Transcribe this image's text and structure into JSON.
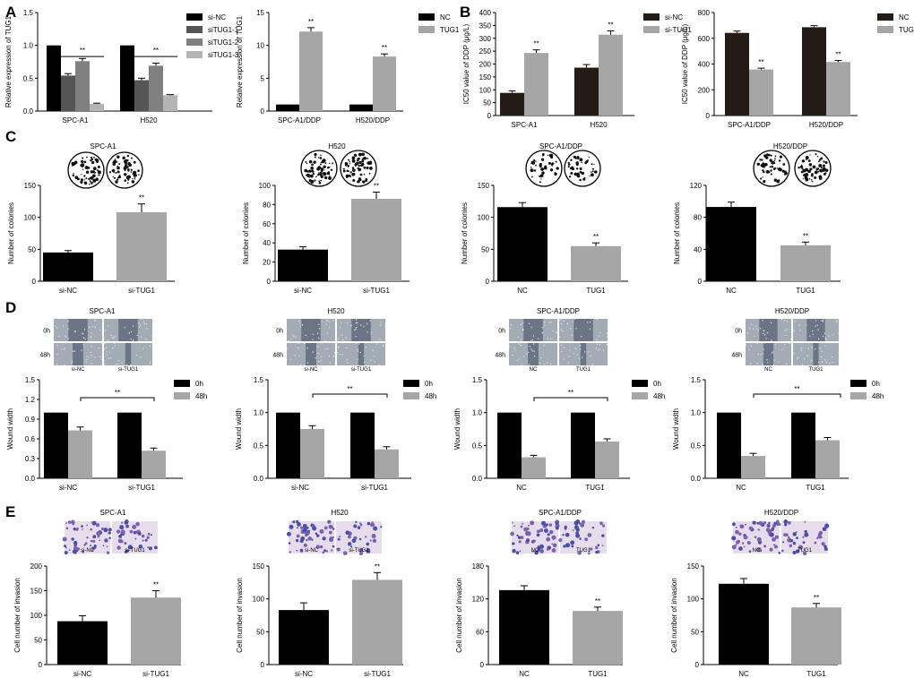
{
  "panel_letters": [
    "A",
    "B",
    "C",
    "D",
    "E"
  ],
  "images": [
    {
      "id": "c1",
      "label": "SPC-A1"
    },
    {
      "id": "c2",
      "label": "H520"
    },
    {
      "id": "c3",
      "label": "SPC-A1/DDP"
    },
    {
      "id": "c4",
      "label": "H520/DDP"
    },
    {
      "id": "d1",
      "label": "SPC-A1",
      "row_labels": [
        "0h",
        "48h"
      ],
      "col_labels": [
        "si-NC",
        "si-TUG1"
      ]
    },
    {
      "id": "d2",
      "label": "H520",
      "row_labels": [
        "0h",
        "48h"
      ],
      "col_labels": [
        "si-NC",
        "si-TUG1"
      ]
    },
    {
      "id": "d3",
      "label": "SPC-A1/DDP",
      "row_labels": [
        "0h",
        "48h"
      ],
      "col_labels": [
        "NC",
        "TUG1"
      ]
    },
    {
      "id": "d4",
      "label": "H520/DDP",
      "row_labels": [
        "0h",
        "48h"
      ],
      "col_labels": [
        "NC",
        "TUG1"
      ]
    },
    {
      "id": "e1",
      "label": "SPC-A1",
      "col_labels": [
        "si-NC",
        "si-TUG1"
      ]
    },
    {
      "id": "e2",
      "label": "H520",
      "col_labels": [
        "si-NC",
        "si-TUG1"
      ]
    },
    {
      "id": "e3",
      "label": "SPC-A1/DDP",
      "col_labels": [
        "NC",
        "TUG1"
      ]
    },
    {
      "id": "e4",
      "label": "H520/DDP",
      "col_labels": [
        "NC",
        "TUG1"
      ]
    }
  ],
  "chart_data": [
    {
      "id": "a1",
      "type": "bar",
      "ylabel": "Relative expression of TUG1",
      "ylim": [
        0,
        1.5
      ],
      "yticks": [
        0,
        0.5,
        1.0,
        1.5
      ],
      "categories": [
        "SPC-A1",
        "H520"
      ],
      "series": [
        {
          "name": "si-NC",
          "color": "#000000",
          "values": [
            1.0,
            1.0
          ],
          "err": [
            0,
            0
          ]
        },
        {
          "name": "siTUG1-1",
          "color": "#555555",
          "values": [
            0.54,
            0.47
          ],
          "err": [
            0.03,
            0.03
          ]
        },
        {
          "name": "siTUG1-2",
          "color": "#808080",
          "values": [
            0.76,
            0.69
          ],
          "err": [
            0.04,
            0.04
          ]
        },
        {
          "name": "siTUG1-3",
          "color": "#b4b4b4",
          "values": [
            0.11,
            0.24
          ],
          "err": [
            0.01,
            0.01
          ]
        }
      ],
      "annotations": [
        "**",
        "**"
      ]
    },
    {
      "id": "a2",
      "type": "bar",
      "ylabel": "Relative expression of TUG1",
      "ylim": [
        0,
        15
      ],
      "yticks": [
        0,
        5,
        10,
        15
      ],
      "categories": [
        "SPC-A1/DDP",
        "H520/DDP"
      ],
      "series": [
        {
          "name": "NC",
          "color": "#000000",
          "values": [
            1.0,
            1.0
          ],
          "err": [
            0,
            0
          ]
        },
        {
          "name": "TUG1",
          "color": "#a6a6a6",
          "values": [
            12.1,
            8.3
          ],
          "err": [
            0.6,
            0.4
          ],
          "sig": [
            "**",
            "**"
          ]
        }
      ]
    },
    {
      "id": "b1",
      "type": "bar",
      "ylabel": "IC50 value of DDP (μg/L)",
      "ylim": [
        0,
        400
      ],
      "yticks": [
        0,
        50,
        100,
        150,
        200,
        250,
        300,
        350,
        400
      ],
      "categories": [
        "SPC-A1",
        "H520"
      ],
      "series": [
        {
          "name": "si-NC",
          "color": "#241a16",
          "values": [
            88,
            186
          ],
          "err": [
            8,
            12
          ]
        },
        {
          "name": "si-TUG1",
          "color": "#a6a6a6",
          "values": [
            243,
            314
          ],
          "err": [
            12,
            15
          ],
          "sig": [
            "**",
            "**"
          ]
        }
      ]
    },
    {
      "id": "b2",
      "type": "bar",
      "ylabel": "IC50 value of DDP (μg/L)",
      "ylim": [
        0,
        800
      ],
      "yticks": [
        0,
        200,
        400,
        600,
        800
      ],
      "categories": [
        "SPC-A1/DDP",
        "H520/DDP"
      ],
      "series": [
        {
          "name": "NC",
          "color": "#241a16",
          "values": [
            642,
            686
          ],
          "err": [
            14,
            12
          ]
        },
        {
          "name": "TUG1",
          "color": "#a6a6a6",
          "values": [
            358,
            416
          ],
          "err": [
            10,
            12
          ],
          "sig": [
            "**",
            "**"
          ]
        }
      ]
    },
    {
      "id": "c1",
      "type": "bar",
      "ylabel": "Number of colonies",
      "ylim": [
        0,
        150
      ],
      "yticks": [
        0,
        50,
        100,
        150
      ],
      "categories": [
        "si-NC",
        "si-TUG1"
      ],
      "colors": [
        "#000000",
        "#a6a6a6"
      ],
      "values": [
        45,
        108
      ],
      "err": [
        3,
        13
      ],
      "sig": [
        "",
        "**"
      ]
    },
    {
      "id": "c2",
      "type": "bar",
      "ylabel": "Number of colonies",
      "ylim": [
        0,
        100
      ],
      "yticks": [
        0,
        20,
        40,
        60,
        80,
        100
      ],
      "categories": [
        "si-NC",
        "si-TUG1"
      ],
      "colors": [
        "#000000",
        "#a6a6a6"
      ],
      "values": [
        33,
        86
      ],
      "err": [
        3,
        7
      ],
      "sig": [
        "",
        "**"
      ]
    },
    {
      "id": "c3",
      "type": "bar",
      "ylabel": "Number of colonies",
      "ylim": [
        0,
        150
      ],
      "yticks": [
        0,
        50,
        100,
        150
      ],
      "categories": [
        "NC",
        "TUG1"
      ],
      "colors": [
        "#000000",
        "#a6a6a6"
      ],
      "values": [
        116,
        55
      ],
      "err": [
        7,
        5
      ],
      "sig": [
        "",
        "**"
      ]
    },
    {
      "id": "c4",
      "type": "bar",
      "ylabel": "Number of colonies",
      "ylim": [
        0,
        120
      ],
      "yticks": [
        0,
        40,
        80,
        120
      ],
      "categories": [
        "NC",
        "TUG1"
      ],
      "colors": [
        "#000000",
        "#a6a6a6"
      ],
      "values": [
        93,
        45
      ],
      "err": [
        6,
        4
      ],
      "sig": [
        "",
        "**"
      ]
    },
    {
      "id": "d1",
      "type": "bar",
      "ylabel": "Wound width",
      "ylim": [
        0,
        1.5
      ],
      "yticks": [
        0,
        0.3,
        0.6,
        0.9,
        1.2,
        1.5
      ],
      "categories": [
        "si-NC",
        "si-TUG1"
      ],
      "series": [
        {
          "name": "0h",
          "color": "#000000",
          "values": [
            1.0,
            1.0
          ],
          "err": [
            0,
            0
          ]
        },
        {
          "name": "48h",
          "color": "#a6a6a6",
          "values": [
            0.73,
            0.42
          ],
          "err": [
            0.05,
            0.04
          ]
        }
      ],
      "bracket": "**"
    },
    {
      "id": "d2",
      "type": "bar",
      "ylabel": "Wound width",
      "ylim": [
        0,
        1.5
      ],
      "yticks": [
        0,
        0.5,
        1.0,
        1.5
      ],
      "categories": [
        "si-NC",
        "si-TUG1"
      ],
      "series": [
        {
          "name": "0h",
          "color": "#000000",
          "values": [
            1.0,
            1.0
          ],
          "err": [
            0,
            0
          ]
        },
        {
          "name": "48h",
          "color": "#a6a6a6",
          "values": [
            0.75,
            0.44
          ],
          "err": [
            0.05,
            0.04
          ]
        }
      ],
      "bracket": "**"
    },
    {
      "id": "d3",
      "type": "bar",
      "ylabel": "Wound width",
      "ylim": [
        0,
        1.5
      ],
      "yticks": [
        0,
        0.5,
        1.0,
        1.5
      ],
      "categories": [
        "NC",
        "TUG1"
      ],
      "series": [
        {
          "name": "0h",
          "color": "#000000",
          "values": [
            1.0,
            1.0
          ],
          "err": [
            0,
            0
          ]
        },
        {
          "name": "48h",
          "color": "#a6a6a6",
          "values": [
            0.32,
            0.56
          ],
          "err": [
            0.03,
            0.04
          ]
        }
      ],
      "bracket": "**"
    },
    {
      "id": "d4",
      "type": "bar",
      "ylabel": "Wound width",
      "ylim": [
        0,
        1.5
      ],
      "yticks": [
        0,
        0.5,
        1.0,
        1.5
      ],
      "categories": [
        "NC",
        "TUG1"
      ],
      "series": [
        {
          "name": "0h",
          "color": "#000000",
          "values": [
            1.0,
            1.0
          ],
          "err": [
            0,
            0
          ]
        },
        {
          "name": "48h",
          "color": "#a6a6a6",
          "values": [
            0.34,
            0.58
          ],
          "err": [
            0.04,
            0.04
          ]
        }
      ],
      "bracket": "**"
    },
    {
      "id": "e1",
      "type": "bar",
      "ylabel": "Cell number of invasion",
      "ylim": [
        0,
        200
      ],
      "yticks": [
        0,
        50,
        100,
        150,
        200
      ],
      "categories": [
        "si-NC",
        "si-TUG1"
      ],
      "colors": [
        "#000000",
        "#a6a6a6"
      ],
      "values": [
        88,
        136
      ],
      "err": [
        11,
        14
      ],
      "sig": [
        "",
        "**"
      ]
    },
    {
      "id": "e2",
      "type": "bar",
      "ylabel": "Cell number of invasion",
      "ylim": [
        0,
        150
      ],
      "yticks": [
        0,
        50,
        100,
        150
      ],
      "categories": [
        "si-NC",
        "si-TUG1"
      ],
      "colors": [
        "#000000",
        "#a6a6a6"
      ],
      "values": [
        83,
        129
      ],
      "err": [
        11,
        11
      ],
      "sig": [
        "",
        "**"
      ]
    },
    {
      "id": "e3",
      "type": "bar",
      "ylabel": "Cell number of invasion",
      "ylim": [
        0,
        180
      ],
      "yticks": [
        0,
        60,
        120,
        180
      ],
      "categories": [
        "NC",
        "TUG1"
      ],
      "colors": [
        "#000000",
        "#a6a6a6"
      ],
      "values": [
        136,
        98
      ],
      "err": [
        8,
        7
      ],
      "sig": [
        "",
        "**"
      ]
    },
    {
      "id": "e4",
      "type": "bar",
      "ylabel": "Cell number of invasion",
      "ylim": [
        0,
        150
      ],
      "yticks": [
        0,
        50,
        100,
        150
      ],
      "categories": [
        "NC",
        "TUG1"
      ],
      "colors": [
        "#000000",
        "#a6a6a6"
      ],
      "values": [
        123,
        87
      ],
      "err": [
        8,
        6
      ],
      "sig": [
        "",
        "**"
      ]
    }
  ]
}
